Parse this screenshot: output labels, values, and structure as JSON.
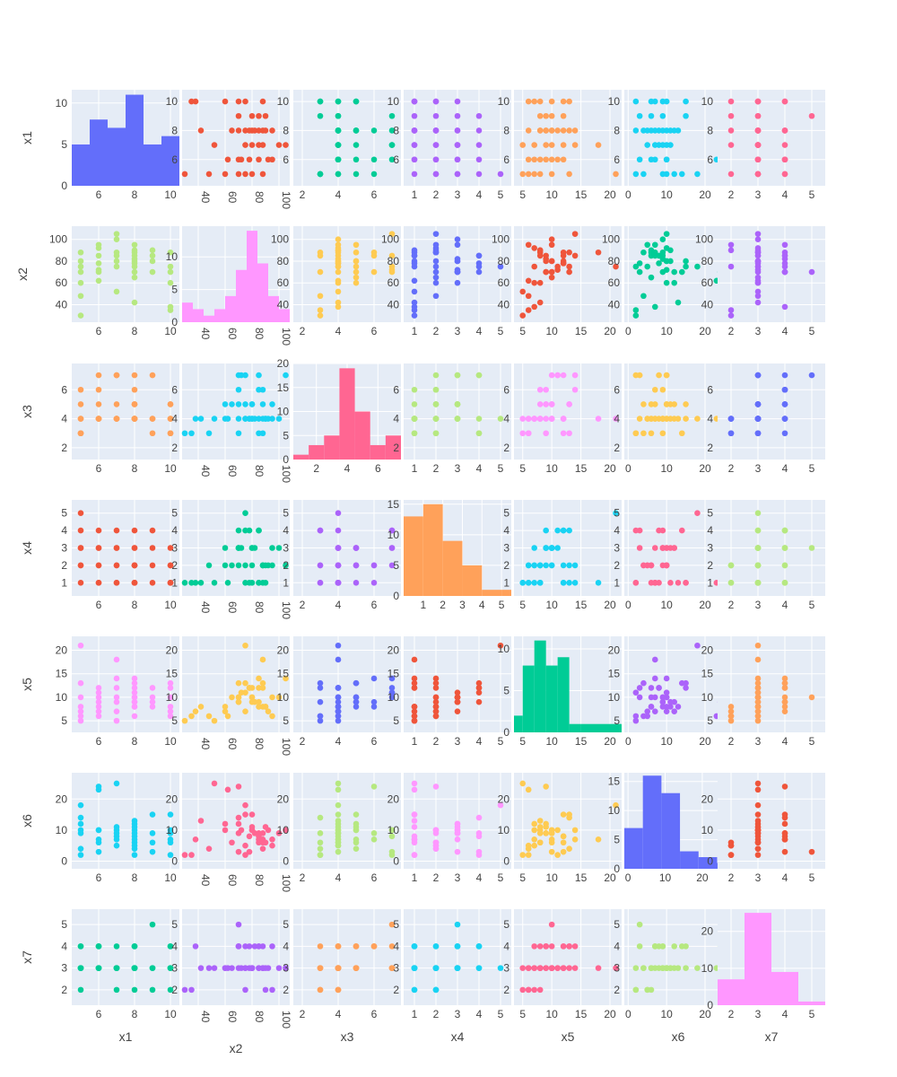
{
  "chart_data": {
    "type": "scatter",
    "title": "",
    "variables": [
      "x1",
      "x2",
      "x3",
      "x4",
      "x5",
      "x6",
      "x7"
    ],
    "axis_ranges": {
      "x1": [
        4.5,
        10.5
      ],
      "x2": [
        28,
        108
      ],
      "x3": [
        1.5,
        7.5
      ],
      "x4": [
        0.5,
        5.5
      ],
      "x5": [
        3.5,
        22
      ],
      "x6": [
        -1,
        27
      ],
      "x7": [
        1.5,
        5.5
      ]
    },
    "hist_ranges": {
      "x1": [
        4.5,
        10.5
      ],
      "x2": [
        28,
        108
      ],
      "x3": [
        0.5,
        7.5
      ],
      "x4": [
        0,
        5.5
      ],
      "x5": [
        3.5,
        22
      ],
      "x6": [
        -1,
        28
      ],
      "x7": [
        1.5,
        5.5
      ]
    },
    "ticks": {
      "x1": [
        6,
        8,
        10
      ],
      "x2": [
        40,
        60,
        80,
        100
      ],
      "x3": [
        2,
        4,
        6
      ],
      "x4": [
        1,
        2,
        3,
        4,
        5
      ],
      "x5": [
        5,
        10,
        15,
        20
      ],
      "x6": [
        0,
        10,
        20
      ],
      "x7": [
        2,
        3,
        4,
        5
      ]
    },
    "histograms": {
      "x1": {
        "edges": [
          4.5,
          5.5,
          6.5,
          7.5,
          8.5,
          9.5,
          10.5
        ],
        "counts": [
          5,
          8,
          7,
          11,
          5,
          6
        ],
        "yticks": [
          0,
          5,
          10
        ],
        "ymax": 11.6
      },
      "x2": {
        "edges": [
          28,
          36,
          44,
          52,
          60,
          68,
          76,
          84,
          92,
          100,
          108
        ],
        "counts": [
          3,
          2,
          1,
          2,
          4,
          8,
          14,
          9,
          4,
          2
        ],
        "yticks": [
          0,
          5,
          10
        ],
        "ymax": 14.7
      },
      "x3": {
        "edges": [
          0.5,
          1.5,
          2.5,
          3.5,
          4.5,
          5.5,
          6.5,
          7.5
        ],
        "counts": [
          1,
          3,
          5,
          19,
          10,
          3,
          5
        ],
        "yticks": [
          0,
          5,
          10,
          15,
          20
        ],
        "ymax": 20
      },
      "x4": {
        "edges": [
          0,
          1,
          2,
          3,
          4,
          5,
          5.5
        ],
        "counts": [
          13,
          15,
          9,
          5,
          1,
          1
        ],
        "yticks": [
          0,
          5,
          10,
          15
        ],
        "ymax": 15.7
      },
      "x5": {
        "edges": [
          3.5,
          5,
          7,
          9,
          11,
          13,
          15,
          22
        ],
        "counts": [
          2,
          8,
          11,
          8,
          9,
          1,
          1
        ],
        "yticks": [
          0,
          5,
          10
        ],
        "ymax": 11.5
      },
      "x6": {
        "edges": [
          -1,
          4,
          9,
          14,
          19,
          24,
          28
        ],
        "counts": [
          7,
          16,
          13,
          3,
          2,
          1
        ],
        "yticks": [
          0,
          5,
          10,
          15
        ],
        "ymax": 16.5
      },
      "x7": {
        "edges": [
          1.5,
          2.5,
          3.5,
          4.5,
          5.5
        ],
        "counts": [
          7,
          25,
          9,
          1
        ],
        "yticks": [
          0,
          10,
          20
        ],
        "ymax": 26
      }
    },
    "records": [
      [
        5,
        30,
        3,
        1,
        5,
        2,
        2
      ],
      [
        5,
        48,
        3,
        2,
        6,
        4,
        3
      ],
      [
        5,
        60,
        4,
        3,
        7,
        12,
        3
      ],
      [
        5,
        70,
        3,
        4,
        13,
        14,
        4
      ],
      [
        5,
        75,
        4,
        5,
        21,
        18,
        3
      ],
      [
        5,
        80,
        5,
        3,
        10,
        10,
        3
      ],
      [
        5,
        88,
        6,
        2,
        8,
        9,
        4
      ],
      [
        6,
        62,
        4,
        1,
        6,
        23,
        3
      ],
      [
        6,
        70,
        6,
        2,
        9,
        24,
        4
      ],
      [
        6,
        72,
        7,
        3,
        11,
        10,
        3
      ],
      [
        6,
        78,
        4,
        4,
        12,
        3,
        4
      ],
      [
        6,
        85,
        4,
        1,
        8,
        6,
        3
      ],
      [
        6,
        92,
        4,
        2,
        7,
        10,
        3
      ],
      [
        6,
        95,
        5,
        3,
        10,
        7,
        4
      ],
      [
        7,
        52,
        4,
        1,
        5,
        25,
        3
      ],
      [
        7,
        75,
        4,
        2,
        7,
        5,
        2
      ],
      [
        7,
        80,
        5,
        3,
        9,
        11,
        3
      ],
      [
        7,
        85,
        7,
        4,
        12,
        8,
        4
      ],
      [
        7,
        88,
        4,
        1,
        18,
        7,
        3
      ],
      [
        7,
        105,
        7,
        2,
        14,
        10,
        3
      ],
      [
        7,
        100,
        4,
        3,
        10,
        9,
        3
      ],
      [
        8,
        42,
        4,
        1,
        8,
        13,
        3
      ],
      [
        8,
        65,
        5,
        2,
        10,
        6,
        3
      ],
      [
        8,
        70,
        5,
        3,
        9,
        12,
        4
      ],
      [
        8,
        75,
        7,
        4,
        11,
        2,
        3
      ],
      [
        8,
        78,
        4,
        1,
        12,
        8,
        3
      ],
      [
        8,
        80,
        4,
        2,
        10,
        10,
        3
      ],
      [
        8,
        82,
        4,
        3,
        9,
        9,
        4
      ],
      [
        8,
        85,
        6,
        1,
        14,
        7,
        4
      ],
      [
        8,
        88,
        5,
        2,
        13,
        4,
        3
      ],
      [
        8,
        90,
        4,
        1,
        8,
        11,
        3
      ],
      [
        8,
        95,
        4,
        2,
        6,
        5,
        2
      ],
      [
        9,
        70,
        7,
        3,
        10,
        3,
        5
      ],
      [
        9,
        80,
        4,
        1,
        12,
        15,
        3
      ],
      [
        9,
        85,
        3,
        4,
        9,
        9,
        3
      ],
      [
        9,
        90,
        4,
        2,
        8,
        6,
        2
      ],
      [
        10,
        35,
        3,
        1,
        6,
        2,
        2
      ],
      [
        10,
        38,
        4,
        1,
        7,
        7,
        4
      ],
      [
        10,
        60,
        5,
        2,
        8,
        10,
        3
      ],
      [
        10,
        70,
        4,
        3,
        10,
        9,
        3
      ],
      [
        10,
        75,
        5,
        1,
        13,
        15,
        4
      ],
      [
        10,
        88,
        3,
        2,
        12,
        6,
        3
      ]
    ]
  }
}
